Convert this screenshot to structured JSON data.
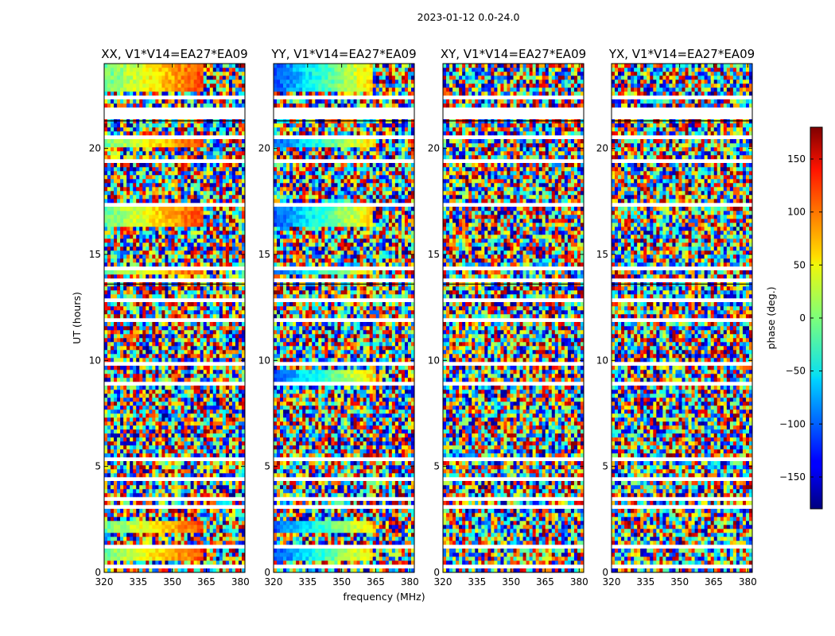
{
  "figure_title": "2023-01-12 0.0-24.0",
  "chart_data": {
    "type": "heatmap",
    "title": "2023-01-12 0.0-24.0",
    "xlabel": "frequency (MHz)",
    "ylabel": "UT (hours)",
    "xlim": [
      320,
      382
    ],
    "ylim": [
      0,
      24
    ],
    "x_ticks": [
      320,
      335,
      350,
      365,
      380
    ],
    "y_ticks": [
      0,
      5,
      10,
      15,
      20
    ],
    "colorbar": {
      "label": "phase (deg.)",
      "range": [
        -180,
        180
      ],
      "ticks": [
        -150,
        -100,
        -50,
        0,
        50,
        100,
        150
      ],
      "tick_labels": [
        "−150",
        "−100",
        "−50",
        "0",
        "50",
        "100",
        "150"
      ],
      "colormap": "jet"
    },
    "panels": [
      {
        "title": "XX, V1*V14=EA27*EA09",
        "coherent": true,
        "base_phase": -10,
        "slope": 8
      },
      {
        "title": "YY, V1*V14=EA27*EA09",
        "coherent": true,
        "base_phase": -110,
        "slope": 11
      },
      {
        "title": "XY, V1*V14=EA27*EA09",
        "coherent": false
      },
      {
        "title": "YX, V1*V14=EA27*EA09",
        "coherent": false
      }
    ],
    "data_gaps_hours": [
      [
        0.2,
        0.3
      ],
      [
        1.1,
        1.25
      ],
      [
        1.6,
        1.75
      ],
      [
        2.55,
        2.7
      ],
      [
        3.0,
        3.1
      ],
      [
        3.45,
        3.55
      ],
      [
        4.4,
        4.55
      ],
      [
        5.3,
        5.45
      ],
      [
        6.3,
        6.45
      ],
      [
        7.6,
        7.75
      ],
      [
        8.8,
        8.95
      ],
      [
        9.8,
        9.95
      ],
      [
        10.6,
        10.75
      ],
      [
        11.8,
        11.95
      ],
      [
        12.8,
        13.0
      ],
      [
        13.6,
        13.85
      ],
      [
        14.3,
        14.45
      ],
      [
        16.25,
        16.4
      ],
      [
        17.2,
        17.35
      ],
      [
        19.4,
        19.55
      ],
      [
        20.5,
        20.65
      ],
      [
        21.3,
        22.0
      ],
      [
        22.4,
        22.55
      ]
    ],
    "coherent_bands_hours": [
      [
        0.5,
        1.1
      ],
      [
        1.8,
        2.5
      ],
      [
        14.0,
        14.3
      ],
      [
        16.4,
        17.2
      ],
      [
        20.0,
        20.5
      ],
      [
        22.6,
        24.0
      ]
    ],
    "coherent_bands_YY_hours": [
      [
        0.5,
        1.1
      ],
      [
        1.8,
        2.5
      ],
      [
        9.0,
        9.6
      ],
      [
        14.0,
        14.3
      ],
      [
        16.4,
        17.2
      ],
      [
        20.0,
        20.5
      ],
      [
        22.6,
        24.0
      ]
    ]
  }
}
